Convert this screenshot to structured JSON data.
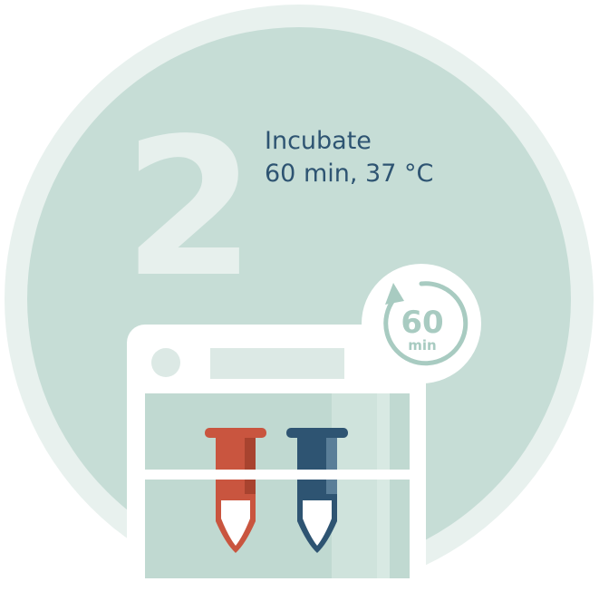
{
  "step": {
    "number": "2",
    "title": "Incubate",
    "detail": "60 min, 37 °C"
  },
  "timer": {
    "value": "60",
    "unit": "min",
    "icon": "clockwise-arrow-icon"
  },
  "tubes": [
    {
      "name": "red-tube",
      "color": "#c9553f"
    },
    {
      "name": "blue-tube",
      "color": "#2e5472"
    }
  ],
  "colors": {
    "outer_ring": "#e8f1ee",
    "inner_circle": "#c6ddd6",
    "incubator_frame": "#ffffff",
    "chamber": "#c0d9d1",
    "text": "#2e5472",
    "timer_accent": "#a8cbc1"
  }
}
